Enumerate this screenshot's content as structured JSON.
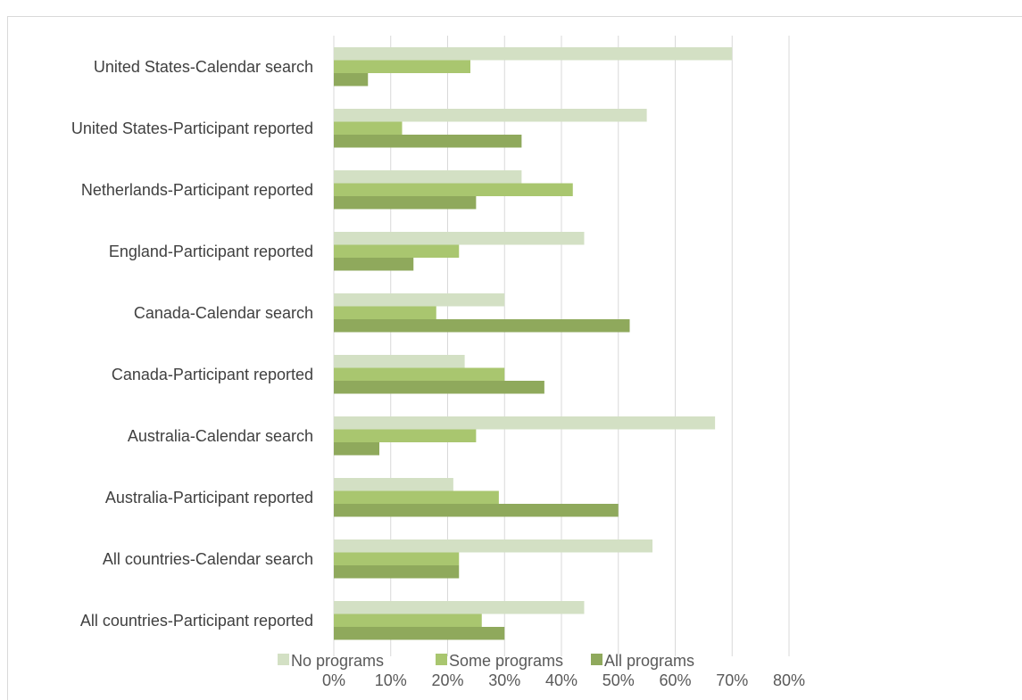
{
  "chart_data": {
    "type": "bar",
    "orientation": "horizontal",
    "categories": [
      "United States-Calendar search",
      "United States-Participant reported",
      "Netherlands-Participant reported",
      "England-Participant reported",
      "Canada-Calendar search",
      "Canada-Participant reported",
      "Australia-Calendar search",
      "Australia-Participant reported",
      "All countries-Calendar search",
      "All countries-Participant reported"
    ],
    "series": [
      {
        "name": "No programs",
        "color": "#d3e0c4",
        "values": [
          0.7,
          0.55,
          0.33,
          0.44,
          0.3,
          0.23,
          0.67,
          0.21,
          0.56,
          0.44
        ]
      },
      {
        "name": "Some programs",
        "color": "#a9c66f",
        "values": [
          0.24,
          0.12,
          0.42,
          0.22,
          0.18,
          0.3,
          0.25,
          0.29,
          0.22,
          0.26
        ]
      },
      {
        "name": "All programs",
        "color": "#8fa95c",
        "values": [
          0.06,
          0.33,
          0.25,
          0.14,
          0.52,
          0.37,
          0.08,
          0.5,
          0.22,
          0.3
        ]
      }
    ],
    "xlim": [
      0,
      0.8
    ],
    "xticks": [
      "0%",
      "10%",
      "20%",
      "30%",
      "40%",
      "50%",
      "60%",
      "70%",
      "80%"
    ],
    "grid": true,
    "legend": "bottom",
    "title": "",
    "xlabel": "",
    "ylabel": ""
  }
}
